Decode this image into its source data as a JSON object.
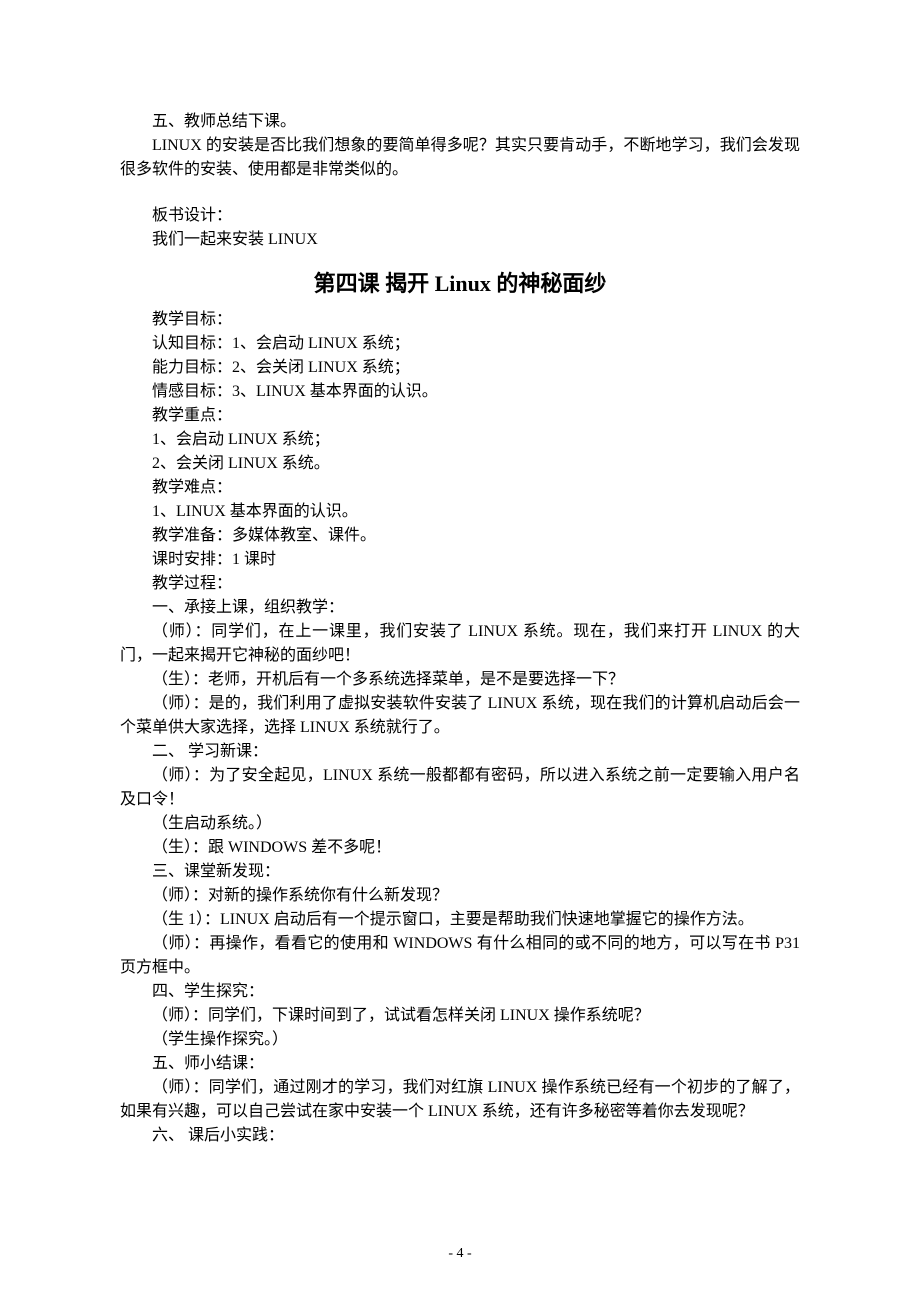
{
  "page": {
    "number": "- 4 -"
  },
  "pre": {
    "l1": "五、教师总结下课。",
    "l2": "LINUX 的安装是否比我们想象的要简单得多呢？其实只要肯动手，不断地学习，我们会发现很多软件的安装、使用都是非常类似的。",
    "l3": "板书设计：",
    "l4": "我们一起来安装 LINUX"
  },
  "title": {
    "prefix": "第四课   揭开 ",
    "latin": "Linux",
    "suffix": " 的神秘面纱"
  },
  "body": {
    "l01": "教学目标：",
    "l02": "认知目标：1、会启动 LINUX 系统；",
    "l03": "能力目标：2、会关闭 LINUX 系统；",
    "l04": "情感目标：3、LINUX 基本界面的认识。",
    "l05": "教学重点：",
    "l06": "1、会启动 LINUX 系统；",
    "l07": "2、会关闭 LINUX 系统。",
    "l08": "教学难点：",
    "l09": "1、LINUX 基本界面的认识。",
    "l10": "教学准备：多媒体教室、课件。",
    "l11": "课时安排：1 课时",
    "l12": "教学过程：",
    "l13": "一、承接上课，组织教学：",
    "l14": "（师）：同学们，在上一课里，我们安装了 LINUX 系统。现在，我们来打开 LINUX 的大门，一起来揭开它神秘的面纱吧！",
    "l15": "（生）：老师，开机后有一个多系统选择菜单，是不是要选择一下？",
    "l16": "（师）：是的，我们利用了虚拟安装软件安装了 LINUX 系统，现在我们的计算机启动后会一个菜单供大家选择，选择 LINUX 系统就行了。",
    "l17": "二、 学习新课：",
    "l18": "（师）：为了安全起见，LINUX 系统一般都都有密码，所以进入系统之前一定要输入用户名及口令！",
    "l19": "（生启动系统。）",
    "l20": "（生）：跟 WINDOWS 差不多呢！",
    "l21": "三、课堂新发现：",
    "l22": "（师）：对新的操作系统你有什么新发现？",
    "l23": "（生 1）：LINUX 启动后有一个提示窗口，主要是帮助我们快速地掌握它的操作方法。",
    "l24": "（师）：再操作，看看它的使用和 WINDOWS 有什么相同的或不同的地方，可以写在书 P31 页方框中。",
    "l25": "四、学生探究：",
    "l26": "（师）：同学们，下课时间到了，试试看怎样关闭 LINUX 操作系统呢？",
    "l27": "（学生操作探究。）",
    "l28": "五、师小结课：",
    "l29": "（师）：同学们，通过刚才的学习，我们对红旗 LINUX 操作系统已经有一个初步的了解了，如果有兴趣，可以自己尝试在家中安装一个 LINUX 系统，还有许多秘密等着你去发现呢？",
    "l30": "六、 课后小实践："
  }
}
